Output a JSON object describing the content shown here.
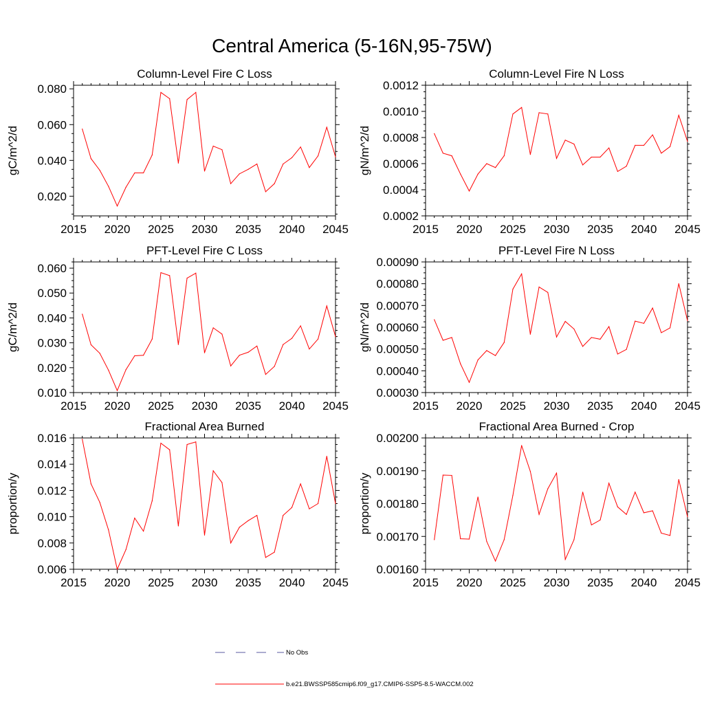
{
  "title": "Central America (5-16N,95-75W)",
  "colors": {
    "series": "#ff0000",
    "obs": "#5a5aa0",
    "axis": "#000000"
  },
  "legend": {
    "entries": [
      {
        "label": "No Obs",
        "style": "dashed"
      },
      {
        "label": "b.e21.BWSSP585cmip6.f09_g17.CMIP6-SSP5-8.5-WACCM.002",
        "style": "solid"
      }
    ]
  },
  "chart_data": [
    {
      "type": "line",
      "title": "Column-Level Fire C Loss",
      "xlabel": "",
      "ylabel": "gC/m^2/d",
      "xlim": [
        2015,
        2045
      ],
      "ylim": [
        0.009,
        0.082
      ],
      "xticks": [
        2015,
        2020,
        2025,
        2030,
        2035,
        2040,
        2045
      ],
      "yticks": [
        0.02,
        0.04,
        0.06,
        0.08
      ],
      "ytick_labels": [
        "0.020",
        "0.040",
        "0.060",
        "0.080"
      ],
      "yminor": 0.005,
      "x": [
        2016,
        2017,
        2018,
        2019,
        2020,
        2021,
        2022,
        2023,
        2024,
        2025,
        2026,
        2027,
        2028,
        2029,
        2030,
        2031,
        2032,
        2033,
        2034,
        2035,
        2036,
        2037,
        2038,
        2039,
        2040,
        2041,
        2042,
        2043,
        2044,
        2045
      ],
      "series": [
        {
          "name": "b.e21.BWSSP585cmip6.f09_g17.CMIP6-SSP5-8.5-WACCM.002",
          "values": [
            0.0575,
            0.041,
            0.0345,
            0.0255,
            0.0145,
            0.025,
            0.033,
            0.033,
            0.043,
            0.078,
            0.0745,
            0.0385,
            0.074,
            0.078,
            0.034,
            0.048,
            0.046,
            0.027,
            0.0325,
            0.035,
            0.038,
            0.0225,
            0.027,
            0.038,
            0.0415,
            0.0475,
            0.036,
            0.0425,
            0.0585,
            0.042
          ]
        }
      ]
    },
    {
      "type": "line",
      "title": "Column-Level Fire N Loss",
      "xlabel": "",
      "ylabel": "gN/m^2/d",
      "xlim": [
        2015,
        2045
      ],
      "ylim": [
        0.0002,
        0.0012
      ],
      "xticks": [
        2015,
        2020,
        2025,
        2030,
        2035,
        2040,
        2045
      ],
      "yticks": [
        0.0002,
        0.0004,
        0.0006,
        0.0008,
        0.001,
        0.0012
      ],
      "ytick_labels": [
        "0.0002",
        "0.0004",
        "0.0006",
        "0.0008",
        "0.0010",
        "0.0012"
      ],
      "yminor": 5e-05,
      "x": [
        2016,
        2017,
        2018,
        2019,
        2020,
        2021,
        2022,
        2023,
        2024,
        2025,
        2026,
        2027,
        2028,
        2029,
        2030,
        2031,
        2032,
        2033,
        2034,
        2035,
        2036,
        2037,
        2038,
        2039,
        2040,
        2041,
        2042,
        2043,
        2044,
        2045
      ],
      "series": [
        {
          "name": "b.e21.BWSSP585cmip6.f09_g17.CMIP6-SSP5-8.5-WACCM.002",
          "values": [
            0.00083,
            0.00068,
            0.00066,
            0.00052,
            0.00039,
            0.00052,
            0.0006,
            0.00057,
            0.00066,
            0.00098,
            0.00103,
            0.00067,
            0.00099,
            0.00098,
            0.00064,
            0.00078,
            0.00075,
            0.00059,
            0.00065,
            0.00065,
            0.00072,
            0.00054,
            0.00058,
            0.00074,
            0.00074,
            0.00082,
            0.00068,
            0.00073,
            0.00097,
            0.00077
          ]
        }
      ]
    },
    {
      "type": "line",
      "title": "PFT-Level Fire C Loss",
      "xlabel": "",
      "ylabel": "gC/m^2/d",
      "xlim": [
        2015,
        2045
      ],
      "ylim": [
        0.01,
        0.0625
      ],
      "xticks": [
        2015,
        2020,
        2025,
        2030,
        2035,
        2040,
        2045
      ],
      "yticks": [
        0.01,
        0.02,
        0.03,
        0.04,
        0.05,
        0.06
      ],
      "ytick_labels": [
        "0.010",
        "0.020",
        "0.030",
        "0.040",
        "0.050",
        "0.060"
      ],
      "yminor": 0.0025,
      "x": [
        2016,
        2017,
        2018,
        2019,
        2020,
        2021,
        2022,
        2023,
        2024,
        2025,
        2026,
        2027,
        2028,
        2029,
        2030,
        2031,
        2032,
        2033,
        2034,
        2035,
        2036,
        2037,
        2038,
        2039,
        2040,
        2041,
        2042,
        2043,
        2044,
        2045
      ],
      "series": [
        {
          "name": "b.e21.BWSSP585cmip6.f09_g17.CMIP6-SSP5-8.5-WACCM.002",
          "values": [
            0.0415,
            0.0292,
            0.0258,
            0.019,
            0.0108,
            0.0192,
            0.0248,
            0.025,
            0.0315,
            0.0582,
            0.057,
            0.0293,
            0.056,
            0.058,
            0.026,
            0.036,
            0.0335,
            0.0207,
            0.025,
            0.0262,
            0.0287,
            0.0173,
            0.0205,
            0.0293,
            0.0318,
            0.0368,
            0.0275,
            0.0315,
            0.0448,
            0.0325
          ]
        }
      ]
    },
    {
      "type": "line",
      "title": "PFT-Level Fire N Loss",
      "xlabel": "",
      "ylabel": "gN/m^2/d",
      "xlim": [
        2015,
        2045
      ],
      "ylim": [
        0.0003,
        0.0009
      ],
      "xticks": [
        2015,
        2020,
        2025,
        2030,
        2035,
        2040,
        2045
      ],
      "yticks": [
        0.0003,
        0.0004,
        0.0005,
        0.0006,
        0.0007,
        0.0008,
        0.0009
      ],
      "ytick_labels": [
        "0.00030",
        "0.00040",
        "0.00050",
        "0.00060",
        "0.00070",
        "0.00080",
        "0.00090"
      ],
      "yminor": 2.5e-05,
      "x": [
        2016,
        2017,
        2018,
        2019,
        2020,
        2021,
        2022,
        2023,
        2024,
        2025,
        2026,
        2027,
        2028,
        2029,
        2030,
        2031,
        2032,
        2033,
        2034,
        2035,
        2036,
        2037,
        2038,
        2039,
        2040,
        2041,
        2042,
        2043,
        2044,
        2045
      ],
      "series": [
        {
          "name": "b.e21.BWSSP585cmip6.f09_g17.CMIP6-SSP5-8.5-WACCM.002",
          "values": [
            0.000635,
            0.00054,
            0.000553,
            0.000432,
            0.000347,
            0.00045,
            0.000493,
            0.00047,
            0.00053,
            0.000775,
            0.000845,
            0.000568,
            0.000785,
            0.00076,
            0.000555,
            0.000627,
            0.000592,
            0.000512,
            0.000553,
            0.000545,
            0.000603,
            0.000477,
            0.000498,
            0.000628,
            0.000618,
            0.000688,
            0.000575,
            0.000597,
            0.0008,
            0.00063
          ]
        }
      ]
    },
    {
      "type": "line",
      "title": "Fractional Area Burned",
      "xlabel": "",
      "ylabel": "proportion/y",
      "xlim": [
        2015,
        2045
      ],
      "ylim": [
        0.006,
        0.016
      ],
      "xticks": [
        2015,
        2020,
        2025,
        2030,
        2035,
        2040,
        2045
      ],
      "yticks": [
        0.006,
        0.008,
        0.01,
        0.012,
        0.014,
        0.016
      ],
      "ytick_labels": [
        "0.006",
        "0.008",
        "0.010",
        "0.012",
        "0.014",
        "0.016"
      ],
      "yminor": 0.0005,
      "x": [
        2016,
        2017,
        2018,
        2019,
        2020,
        2021,
        2022,
        2023,
        2024,
        2025,
        2026,
        2027,
        2028,
        2029,
        2030,
        2031,
        2032,
        2033,
        2034,
        2035,
        2036,
        2037,
        2038,
        2039,
        2040,
        2041,
        2042,
        2043,
        2044,
        2045
      ],
      "series": [
        {
          "name": "b.e21.BWSSP585cmip6.f09_g17.CMIP6-SSP5-8.5-WACCM.002",
          "values": [
            0.0159,
            0.0125,
            0.0111,
            0.009,
            0.006,
            0.0075,
            0.0099,
            0.0089,
            0.0112,
            0.0156,
            0.0151,
            0.0093,
            0.0155,
            0.0157,
            0.0086,
            0.0135,
            0.0126,
            0.008,
            0.0092,
            0.0097,
            0.0101,
            0.0069,
            0.0073,
            0.0101,
            0.0107,
            0.0125,
            0.0106,
            0.011,
            0.0146,
            0.011
          ]
        }
      ]
    },
    {
      "type": "line",
      "title": "Fractional Area Burned - Crop",
      "xlabel": "",
      "ylabel": "proportion/y",
      "xlim": [
        2015,
        2045
      ],
      "ylim": [
        0.0016,
        0.002
      ],
      "xticks": [
        2015,
        2020,
        2025,
        2030,
        2035,
        2040,
        2045
      ],
      "yticks": [
        0.0016,
        0.0017,
        0.0018,
        0.0019,
        0.002
      ],
      "ytick_labels": [
        "0.00160",
        "0.00170",
        "0.00180",
        "0.00190",
        "0.00200"
      ],
      "yminor": 2.5e-05,
      "x": [
        2016,
        2017,
        2018,
        2019,
        2020,
        2021,
        2022,
        2023,
        2024,
        2025,
        2026,
        2027,
        2028,
        2029,
        2030,
        2031,
        2032,
        2033,
        2034,
        2035,
        2036,
        2037,
        2038,
        2039,
        2040,
        2041,
        2042,
        2043,
        2044,
        2045
      ],
      "series": [
        {
          "name": "b.e21.BWSSP585cmip6.f09_g17.CMIP6-SSP5-8.5-WACCM.002",
          "values": [
            0.00169,
            0.001887,
            0.001886,
            0.001693,
            0.001692,
            0.00182,
            0.001685,
            0.001625,
            0.00169,
            0.001825,
            0.001977,
            0.001898,
            0.001767,
            0.001845,
            0.001893,
            0.00163,
            0.00169,
            0.001835,
            0.001735,
            0.00175,
            0.001862,
            0.00179,
            0.001767,
            0.001835,
            0.001772,
            0.001778,
            0.00171,
            0.001703,
            0.001873,
            0.00176
          ]
        }
      ]
    }
  ]
}
